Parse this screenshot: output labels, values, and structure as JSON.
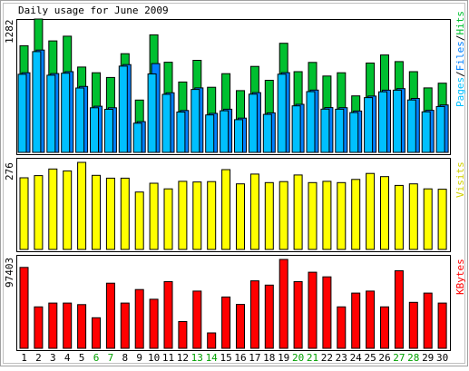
{
  "title": "Daily usage for June 2009",
  "chart_data": [
    {
      "type": "bar",
      "title": "Daily usage for June 2009",
      "panel": "hits",
      "ymax_label": "1282",
      "ylim": [
        0,
        1282
      ],
      "legend": [
        {
          "text": "Pages",
          "color": "#00C0FF"
        },
        {
          "text": "/",
          "color": "#000000"
        },
        {
          "text": "Files",
          "color": "#0080FF"
        },
        {
          "text": "/",
          "color": "#000000"
        },
        {
          "text": "Hits",
          "color": "#00C030"
        }
      ],
      "categories": [
        "1",
        "2",
        "3",
        "4",
        "5",
        "6",
        "7",
        "8",
        "9",
        "10",
        "11",
        "12",
        "13",
        "14",
        "15",
        "16",
        "17",
        "18",
        "19",
        "20",
        "21",
        "22",
        "23",
        "24",
        "25",
        "26",
        "27",
        "28",
        "29",
        "30"
      ],
      "series": [
        {
          "name": "Hits",
          "color": "#00C030",
          "values": [
            1026,
            1282,
            1072,
            1117,
            821,
            766,
            720,
            949,
            503,
            1130,
            867,
            677,
            885,
            626,
            757,
            594,
            827,
            693,
            1049,
            776,
            865,
            734,
            766,
            543,
            859,
            937,
            873,
            776,
            620,
            665
          ]
        },
        {
          "name": "Files",
          "color": "#0080FF",
          "values": [
            766,
            984,
            758,
            776,
            634,
            444,
            429,
            844,
            296,
            854,
            573,
            403,
            620,
            375,
            415,
            330,
            575,
            380,
            767,
            462,
            599,
            431,
            430,
            398,
            542,
            598,
            613,
            519,
            405,
            456
          ]
        },
        {
          "name": "Pages",
          "color": "#00C0FF",
          "values": [
            751,
            969,
            742,
            761,
            619,
            429,
            414,
            829,
            281,
            754,
            558,
            388,
            605,
            360,
            400,
            315,
            560,
            365,
            752,
            447,
            584,
            416,
            415,
            383,
            527,
            583,
            598,
            504,
            390,
            441
          ]
        }
      ]
    },
    {
      "type": "bar",
      "panel": "visits",
      "ymax_label": "276",
      "ylim": [
        0,
        276
      ],
      "legend": [
        {
          "text": "Visits",
          "color": "#E0E000"
        }
      ],
      "categories": [
        "1",
        "2",
        "3",
        "4",
        "5",
        "6",
        "7",
        "8",
        "9",
        "10",
        "11",
        "12",
        "13",
        "14",
        "15",
        "16",
        "17",
        "18",
        "19",
        "20",
        "21",
        "22",
        "23",
        "24",
        "25",
        "26",
        "27",
        "28",
        "29",
        "30"
      ],
      "series": [
        {
          "name": "Visits",
          "color": "#FFFF00",
          "values": [
            227,
            234,
            255,
            249,
            276,
            235,
            226,
            226,
            182,
            210,
            192,
            216,
            214,
            215,
            253,
            208,
            239,
            212,
            215,
            236,
            212,
            216,
            212,
            222,
            241,
            231,
            203,
            208,
            192,
            191
          ]
        }
      ]
    },
    {
      "type": "bar",
      "panel": "kbytes",
      "ymax_label": "97403",
      "ylim": [
        0,
        97403
      ],
      "legend": [
        {
          "text": "KBytes",
          "color": "#FF0000"
        }
      ],
      "categories": [
        "1",
        "2",
        "3",
        "4",
        "5",
        "6",
        "7",
        "8",
        "9",
        "10",
        "11",
        "12",
        "13",
        "14",
        "15",
        "16",
        "17",
        "18",
        "19",
        "20",
        "21",
        "22",
        "23",
        "24",
        "25",
        "26",
        "27",
        "28",
        "29",
        "30"
      ],
      "series": [
        {
          "name": "KBytes",
          "color": "#FF0000",
          "values": [
            88700,
            45400,
            49600,
            49600,
            47900,
            33500,
            71400,
            49600,
            64400,
            53800,
            73100,
            29300,
            62700,
            16900,
            56300,
            48100,
            73900,
            69300,
            97400,
            73100,
            83400,
            78300,
            45400,
            60500,
            62700,
            45400,
            85000,
            50400,
            60500,
            49600
          ]
        }
      ]
    }
  ],
  "x_axis": {
    "labels": [
      "1",
      "2",
      "3",
      "4",
      "5",
      "6",
      "7",
      "8",
      "9",
      "10",
      "11",
      "12",
      "13",
      "14",
      "15",
      "16",
      "17",
      "18",
      "19",
      "20",
      "21",
      "22",
      "23",
      "24",
      "25",
      "26",
      "27",
      "28",
      "29",
      "30"
    ],
    "weekend_color": "#00A000",
    "weekday_color": "#000000",
    "weekend_days": [
      "6",
      "7",
      "13",
      "14",
      "20",
      "21",
      "27",
      "28"
    ]
  }
}
